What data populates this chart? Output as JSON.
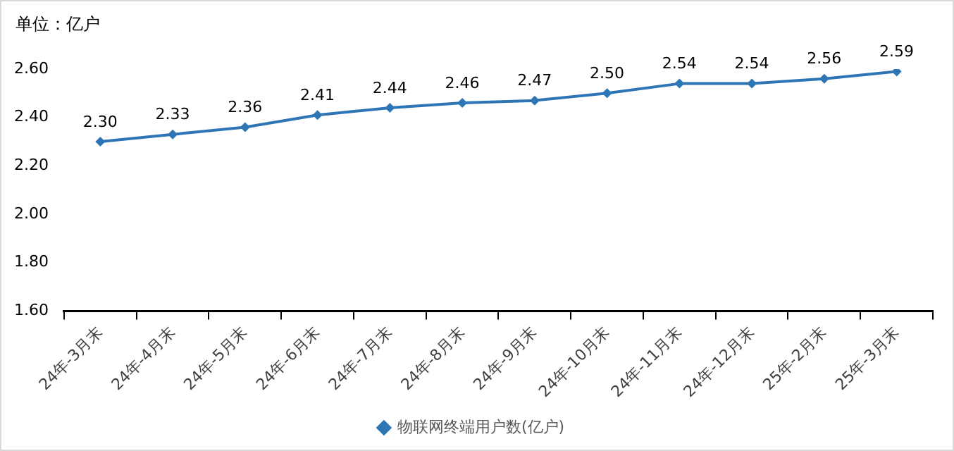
{
  "chart_data": {
    "type": "line",
    "ylabel": "单位：亿户",
    "categories": [
      "24年-3月末",
      "24年-4月末",
      "24年-5月末",
      "24年-6月末",
      "24年-7月末",
      "24年-8月末",
      "24年-9月末",
      "24年-10月末",
      "24年-11月末",
      "24年-12月末",
      "25年-2月末",
      "25年-3月末"
    ],
    "series": [
      {
        "name": "物联网终端用户数(亿户)",
        "color": "#2e75b6",
        "values": [
          2.3,
          2.33,
          2.36,
          2.41,
          2.44,
          2.46,
          2.47,
          2.5,
          2.54,
          2.54,
          2.56,
          2.59
        ],
        "value_labels": [
          "2.30",
          "2.33",
          "2.36",
          "2.41",
          "2.44",
          "2.46",
          "2.47",
          "2.50",
          "2.54",
          "2.54",
          "2.56",
          "2.59"
        ]
      }
    ],
    "ylim": [
      1.6,
      2.6
    ],
    "yticks": [
      {
        "value": 1.6,
        "label": "1.60"
      },
      {
        "value": 1.8,
        "label": "1.80"
      },
      {
        "value": 2.0,
        "label": "2.00"
      },
      {
        "value": 2.2,
        "label": "2.20"
      },
      {
        "value": 2.4,
        "label": "2.40"
      },
      {
        "value": 2.6,
        "label": "2.60"
      }
    ],
    "grid": false,
    "legend": "bottom",
    "marker": "diamond",
    "line_style": "solid"
  }
}
